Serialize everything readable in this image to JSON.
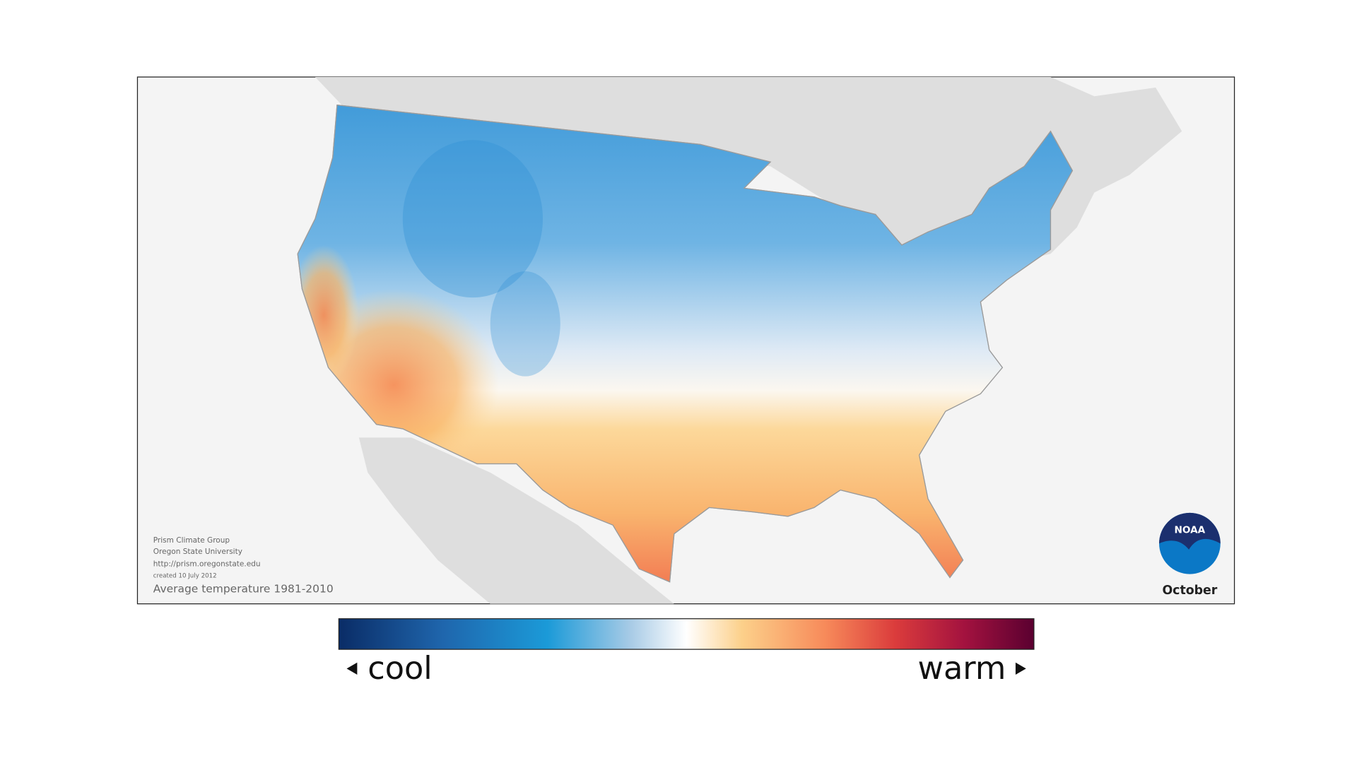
{
  "map": {
    "credits": [
      "Prism Climate Group",
      "Oregon State University",
      "http://prism.oregonstate.edu",
      "created 10 July 2012"
    ],
    "caption": "Average temperature 1981-2010",
    "month": "October",
    "logo": "NOAA"
  },
  "legend": {
    "low_label": "cool",
    "high_label": "warm"
  }
}
